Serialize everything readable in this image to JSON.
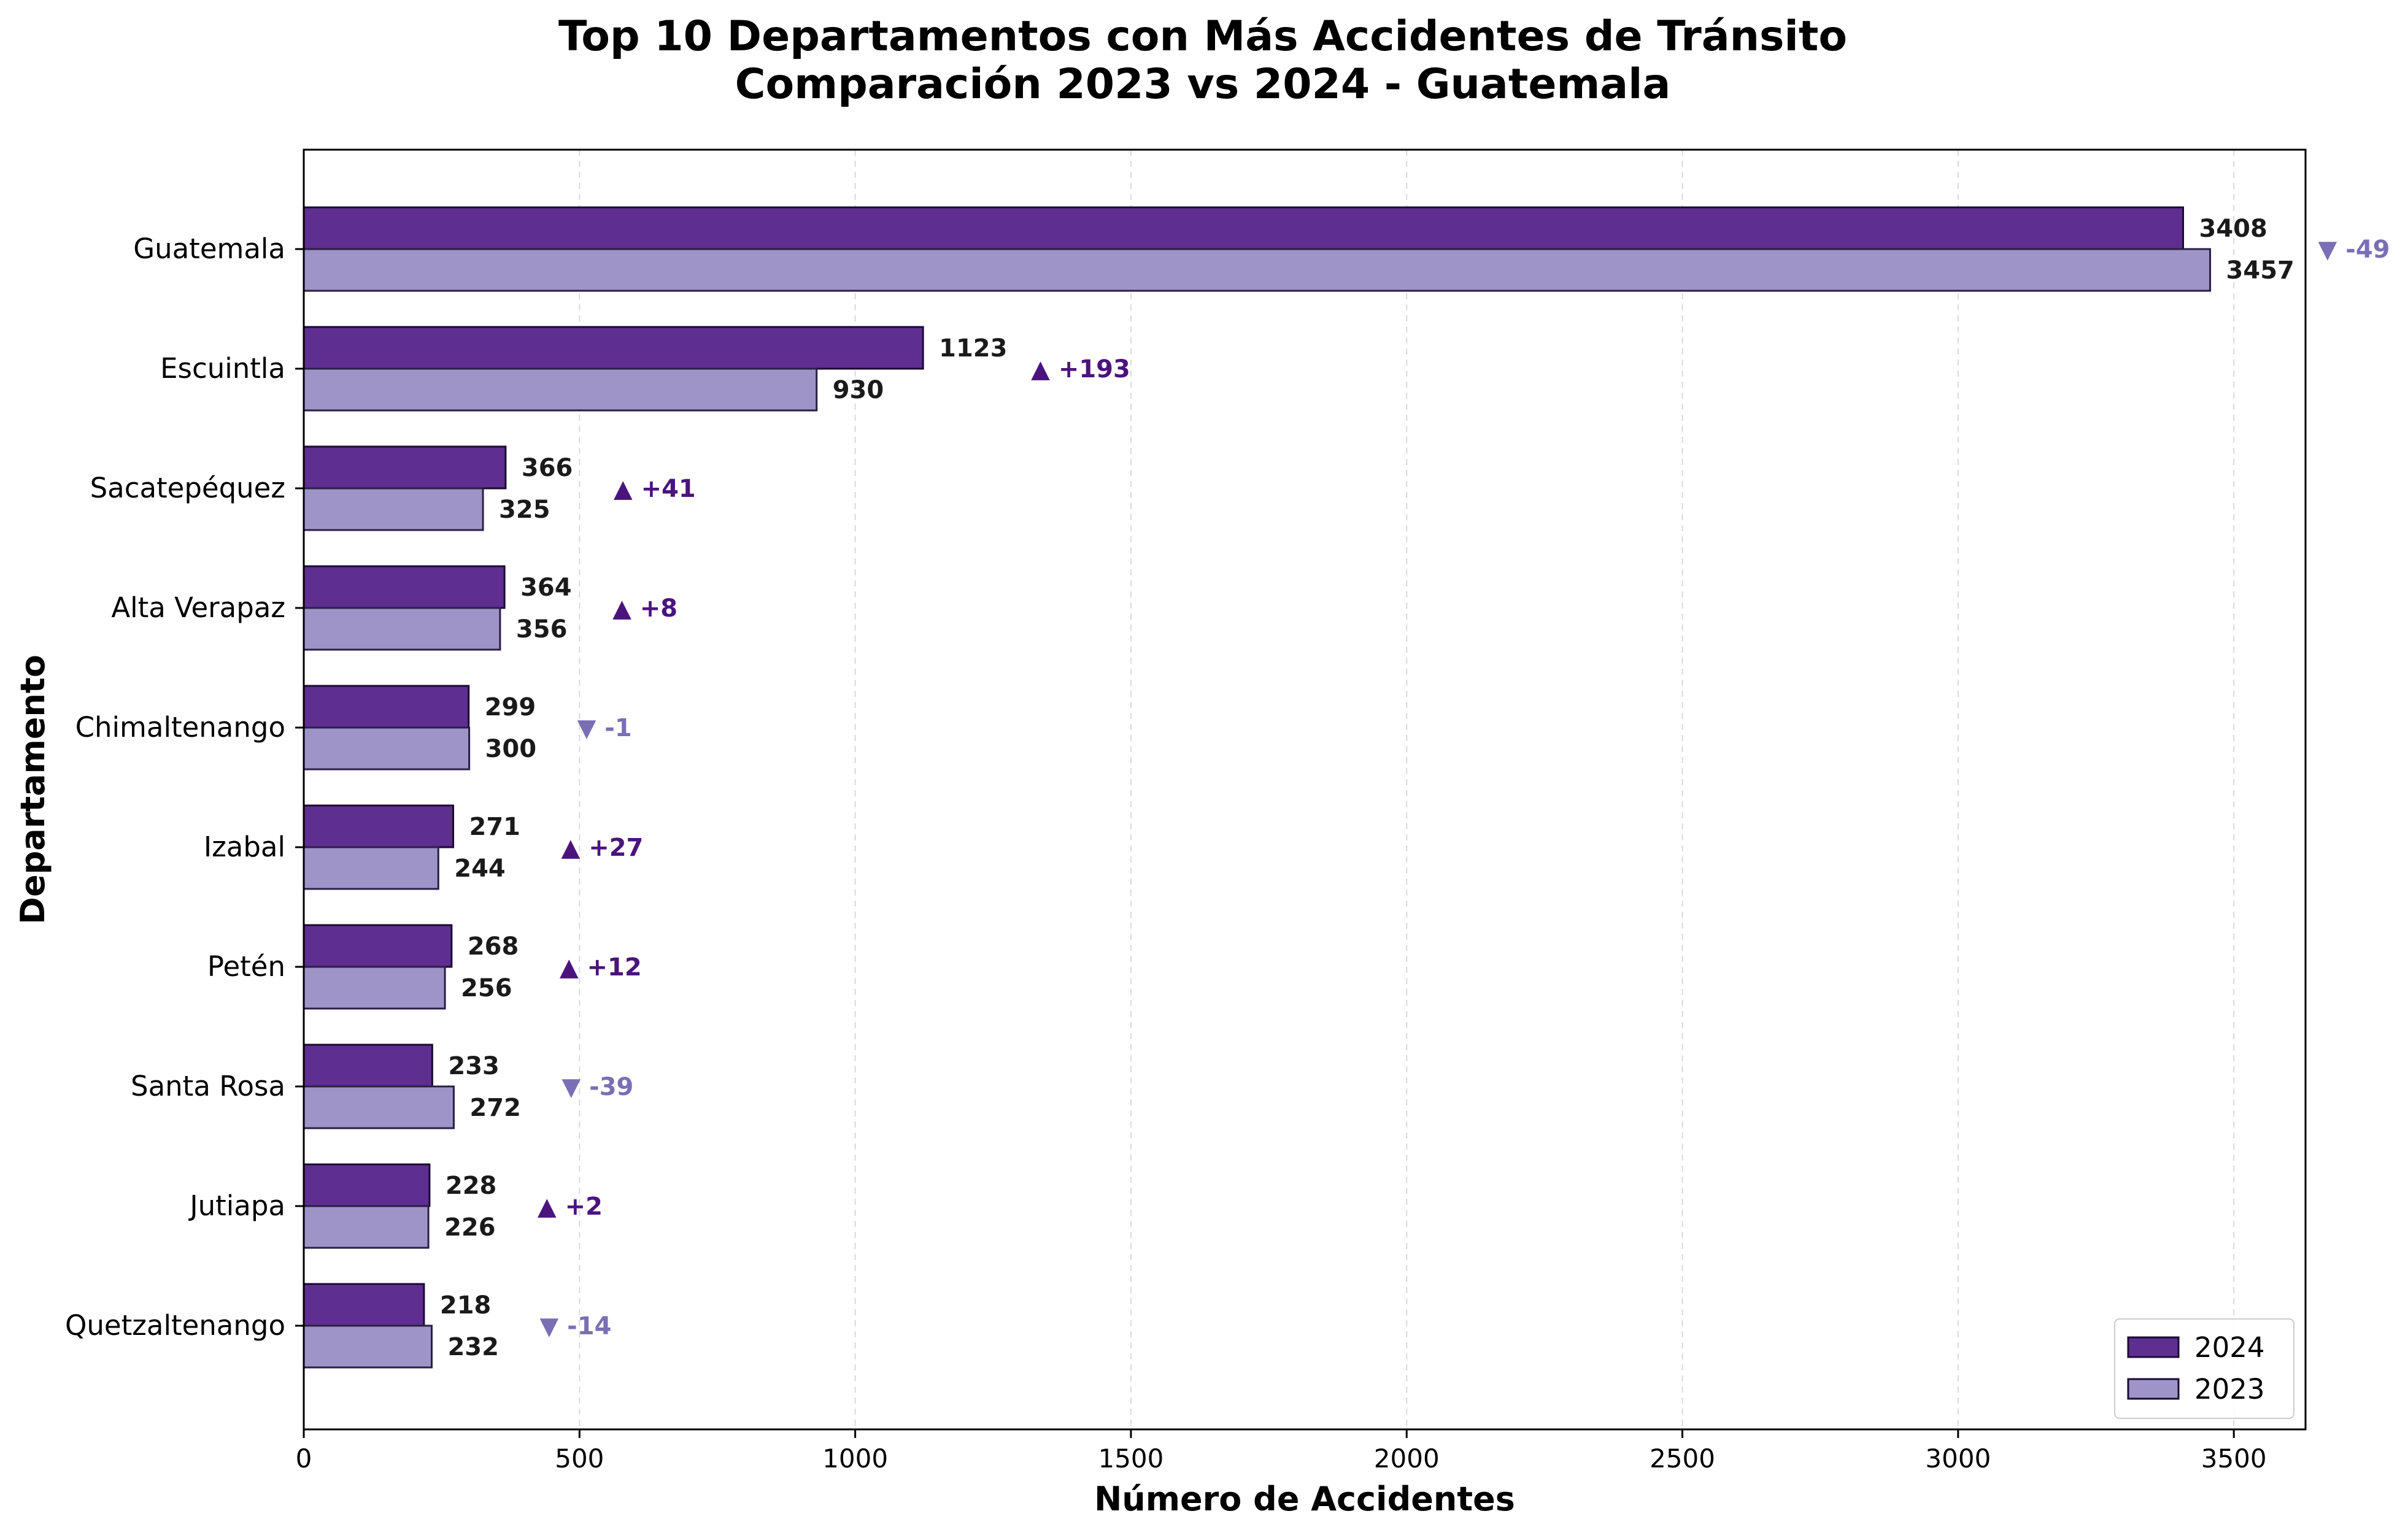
{
  "chart_data": {
    "type": "bar",
    "orientation": "horizontal",
    "title_line1": "Top 10 Departamentos con Más Accidentes de Tránsito",
    "title_line2": "Comparación 2023 vs 2024 - Guatemala",
    "xlabel": "Número de Accidentes",
    "ylabel": "Departamento",
    "xlim": [
      0,
      3630
    ],
    "xticks": [
      0,
      500,
      1000,
      1500,
      2000,
      2500,
      3000,
      3500
    ],
    "grid": "x-dashed",
    "legend_position": "bottom-right",
    "categories": [
      "Guatemala",
      "Escuintla",
      "Sacatepéquez",
      "Alta Verapaz",
      "Chimaltenango",
      "Izabal",
      "Petén",
      "Santa Rosa",
      "Jutiapa",
      "Quetzaltenango"
    ],
    "series": [
      {
        "name": "2024",
        "color": "#5e2e91",
        "values": [
          3408,
          1123,
          366,
          364,
          299,
          271,
          268,
          233,
          228,
          218
        ]
      },
      {
        "name": "2023",
        "color": "#9e94c8",
        "values": [
          3457,
          930,
          325,
          356,
          300,
          244,
          256,
          272,
          226,
          232
        ]
      }
    ],
    "changes": [
      "▼ -49",
      "▲ +193",
      "▲ +41",
      "▲ +8",
      "▼ -1",
      "▲ +27",
      "▲ +12",
      "▼ -39",
      "▲ +2",
      "▼ -14"
    ],
    "change_colors": {
      "up": "#4b137e",
      "down": "#7a6fb5"
    }
  }
}
